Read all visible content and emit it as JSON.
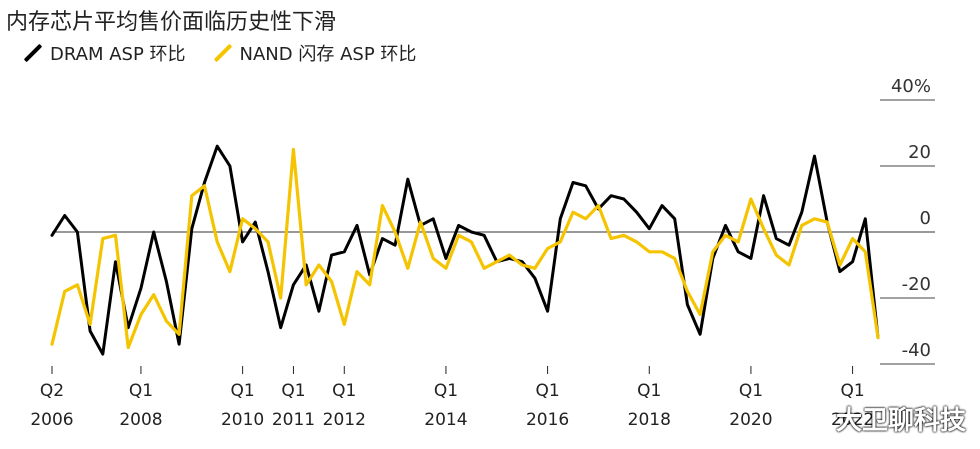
{
  "chart_data": {
    "type": "line",
    "title": "内存芯片平均售价面临历史性下滑",
    "ylabel": "",
    "ylim": [
      -40,
      40
    ],
    "y_ticks": [
      40,
      20,
      0,
      -20,
      -40
    ],
    "y_tick_labels": [
      "40%",
      "20",
      "0",
      "-20",
      "-40"
    ],
    "x_ticks": [
      {
        "q": "Q2",
        "year": "2006",
        "x": 2006.25
      },
      {
        "q": "Q1",
        "year": "2008",
        "x": 2008.0
      },
      {
        "q": "Q1",
        "year": "2010",
        "x": 2010.0
      },
      {
        "q": "Q1",
        "year": "2011",
        "x": 2011.0
      },
      {
        "q": "Q1",
        "year": "2012",
        "x": 2012.0
      },
      {
        "q": "Q1",
        "year": "2014",
        "x": 2014.0
      },
      {
        "q": "Q1",
        "year": "2016",
        "x": 2016.0
      },
      {
        "q": "Q1",
        "year": "2018",
        "x": 2018.0
      },
      {
        "q": "Q1",
        "year": "2020",
        "x": 2020.0
      },
      {
        "q": "Q1",
        "year": "2022",
        "x": 2022.0
      }
    ],
    "x": [
      2006.25,
      2006.5,
      2006.75,
      2007.0,
      2007.25,
      2007.5,
      2007.75,
      2008.0,
      2008.25,
      2008.5,
      2008.75,
      2009.0,
      2009.25,
      2009.5,
      2009.75,
      2010.0,
      2010.25,
      2010.5,
      2010.75,
      2011.0,
      2011.25,
      2011.5,
      2011.75,
      2012.0,
      2012.25,
      2012.5,
      2012.75,
      2013.0,
      2013.25,
      2013.5,
      2013.75,
      2014.0,
      2014.25,
      2014.5,
      2014.75,
      2015.0,
      2015.25,
      2015.5,
      2015.75,
      2016.0,
      2016.25,
      2016.5,
      2016.75,
      2017.0,
      2017.25,
      2017.5,
      2017.75,
      2018.0,
      2018.25,
      2018.5,
      2018.75,
      2019.0,
      2019.25,
      2019.5,
      2019.75,
      2020.0,
      2020.25,
      2020.5,
      2020.75,
      2021.0,
      2021.25,
      2021.5,
      2021.75,
      2022.0,
      2022.25,
      2022.5
    ],
    "series": [
      {
        "name": "DRAM ASP 环比",
        "color": "#000000",
        "values": [
          -1,
          5,
          0,
          -30,
          -37,
          -9,
          -29,
          -17,
          0,
          -15,
          -34,
          1,
          15,
          26,
          20,
          -3,
          3,
          -12,
          -29,
          -16,
          -10,
          -24,
          -7,
          -6,
          2,
          -13,
          -2,
          -4,
          16,
          2,
          4,
          -8,
          2,
          0,
          -1,
          -9,
          -8,
          -9,
          -14,
          -24,
          4,
          15,
          14,
          7,
          11,
          10,
          6,
          1,
          8,
          4,
          -22,
          -31,
          -8,
          2,
          -6,
          -8,
          11,
          -2,
          -4,
          6,
          23,
          3,
          -12,
          -9,
          4,
          -32
        ],
        "annotation": "Q1 2022"
      },
      {
        "name": "NAND 闪存 ASP 环比",
        "color": "#f5c400",
        "values": [
          -34,
          -18,
          -16,
          -28,
          -2,
          -1,
          -35,
          -25,
          -19,
          -27,
          -31,
          11,
          14,
          -3,
          -12,
          4,
          1,
          -3,
          -20,
          25,
          -16,
          -10,
          -15,
          -28,
          -12,
          -16,
          8,
          0,
          -11,
          3,
          -8,
          -11,
          -1,
          -3,
          -11,
          -9,
          -7,
          -10,
          -11,
          -5,
          -3,
          6,
          4,
          8,
          -2,
          -1,
          -3,
          -6,
          -6,
          -8,
          -18,
          -25,
          -6,
          -1,
          -3,
          10,
          1,
          -7,
          -10,
          2,
          4,
          3,
          -10,
          -2,
          -6,
          -32
        ]
      }
    ],
    "grid": "horizontal"
  },
  "legend": [
    {
      "label": "DRAM ASP 环比",
      "color": "#000000"
    },
    {
      "label": "NAND 闪存 ASP 环比",
      "color": "#f5c400"
    }
  ],
  "watermark": "大卫聊科技"
}
